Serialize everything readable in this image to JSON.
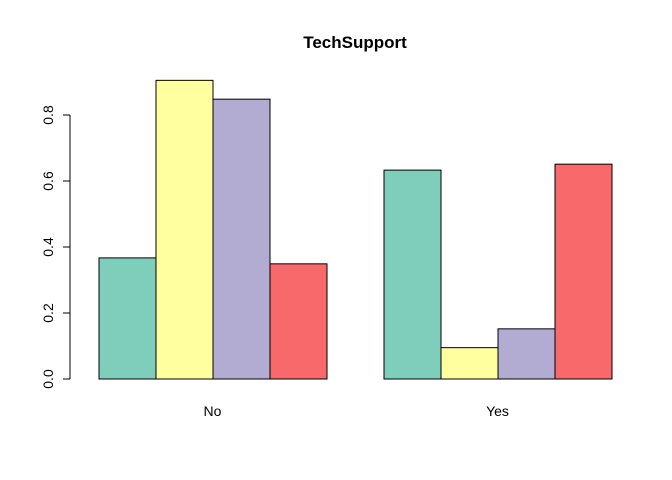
{
  "chart_data": {
    "type": "bar",
    "title": "TechSupport",
    "xlabel": "",
    "ylabel": "",
    "categories": [
      "No",
      "Yes"
    ],
    "ylim": [
      0,
      0.9
    ],
    "yticks": [
      0.0,
      0.2,
      0.4,
      0.6,
      0.8
    ],
    "ytick_labels": [
      "0.0",
      "0.2",
      "0.4",
      "0.6",
      "0.8"
    ],
    "grid": false,
    "legend": "none",
    "series": [
      {
        "color": "#7FCDBB",
        "values": [
          0.367,
          0.633
        ]
      },
      {
        "color": "#FFFFA0",
        "values": [
          0.905,
          0.095
        ]
      },
      {
        "color": "#B2ABD2",
        "values": [
          0.848,
          0.152
        ]
      },
      {
        "color": "#F8696B",
        "values": [
          0.349,
          0.651
        ]
      }
    ]
  }
}
